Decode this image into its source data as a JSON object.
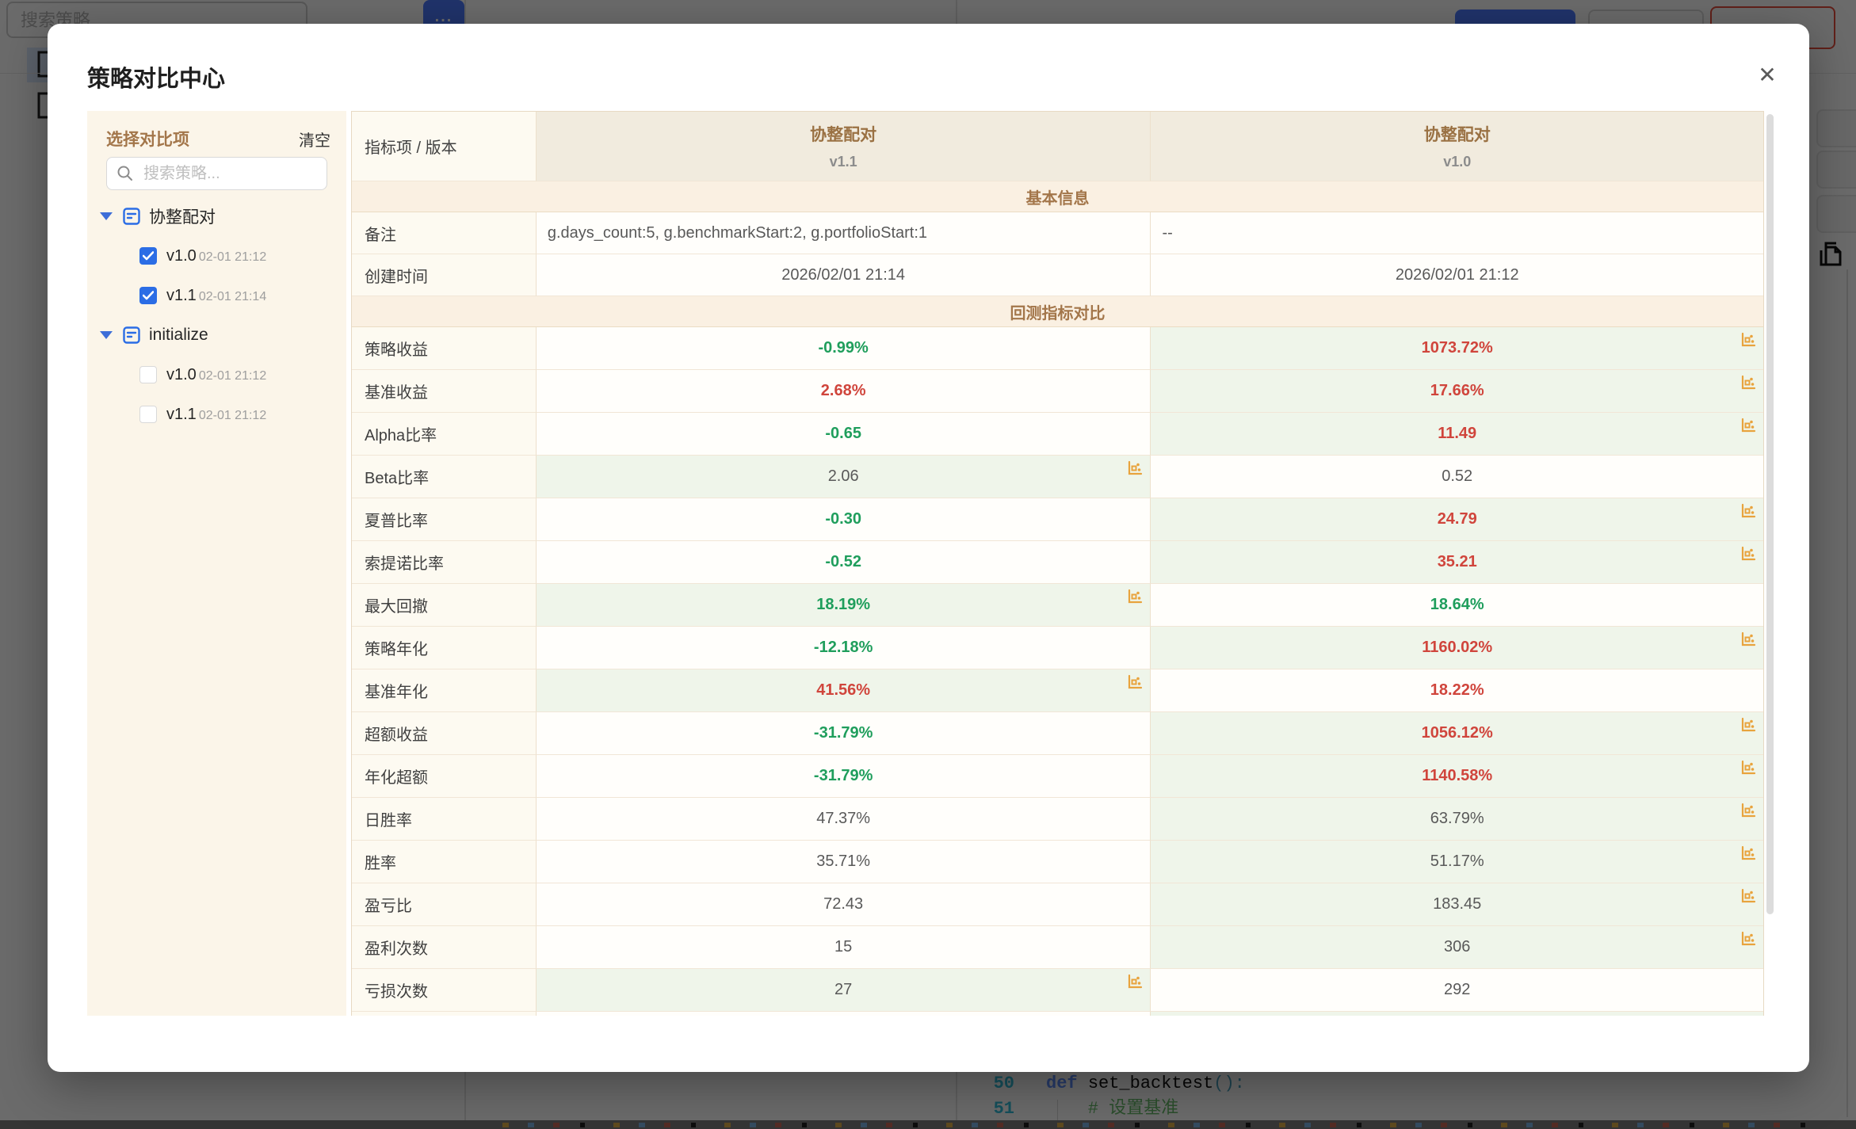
{
  "modal": {
    "title": "策略对比中心",
    "close_glyph": "✕"
  },
  "sidebar": {
    "title": "选择对比项",
    "clear_label": "清空",
    "search_placeholder": "搜索策略...",
    "tree": [
      {
        "label": "协整配对",
        "children": [
          {
            "version": "v1.0",
            "time": "02-01 21:12",
            "checked": true
          },
          {
            "version": "v1.1",
            "time": "02-01 21:14",
            "checked": true
          }
        ]
      },
      {
        "label": "initialize",
        "children": [
          {
            "version": "v1.0",
            "time": "02-01 21:12",
            "checked": false
          },
          {
            "version": "v1.1",
            "time": "02-01 21:12",
            "checked": false
          }
        ]
      }
    ]
  },
  "table": {
    "corner_label": "指标项 / 版本",
    "columns": [
      {
        "name": "协整配对",
        "version": "v1.1"
      },
      {
        "name": "协整配对",
        "version": "v1.0"
      }
    ],
    "sections": [
      {
        "title": "基本信息",
        "kind": "info",
        "rows": [
          {
            "label": "备注",
            "v1": "g.days_count:5, g.benchmarkStart:2, g.portfolioStart:1",
            "v1c": "vn",
            "v2": "--",
            "v2c": "vn",
            "winner": "",
            "align": "left"
          },
          {
            "label": "创建时间",
            "v1": "2026/02/01 21:14",
            "v1c": "vn",
            "v2": "2026/02/01 21:12",
            "v2c": "vn",
            "winner": "",
            "align": "center"
          }
        ]
      },
      {
        "title": "回测指标对比",
        "kind": "metric",
        "rows": [
          {
            "label": "策略收益",
            "v1": "-0.99%",
            "v1c": "vd",
            "v2": "1073.72%",
            "v2c": "vu",
            "winner": "v2"
          },
          {
            "label": "基准收益",
            "v1": "2.68%",
            "v1c": "vu",
            "v2": "17.66%",
            "v2c": "vu",
            "winner": "v2"
          },
          {
            "label": "Alpha比率",
            "v1": "-0.65",
            "v1c": "vd",
            "v2": "11.49",
            "v2c": "vu",
            "winner": "v2"
          },
          {
            "label": "Beta比率",
            "v1": "2.06",
            "v1c": "vn",
            "v2": "0.52",
            "v2c": "vn",
            "winner": "v1"
          },
          {
            "label": "夏普比率",
            "v1": "-0.30",
            "v1c": "vd",
            "v2": "24.79",
            "v2c": "vu",
            "winner": "v2"
          },
          {
            "label": "索提诺比率",
            "v1": "-0.52",
            "v1c": "vd",
            "v2": "35.21",
            "v2c": "vu",
            "winner": "v2"
          },
          {
            "label": "最大回撤",
            "v1": "18.19%",
            "v1c": "vd",
            "v2": "18.64%",
            "v2c": "vd",
            "winner": "v1"
          },
          {
            "label": "策略年化",
            "v1": "-12.18%",
            "v1c": "vd",
            "v2": "1160.02%",
            "v2c": "vu",
            "winner": "v2"
          },
          {
            "label": "基准年化",
            "v1": "41.56%",
            "v1c": "vu",
            "v2": "18.22%",
            "v2c": "vu",
            "winner": "v1"
          },
          {
            "label": "超额收益",
            "v1": "-31.79%",
            "v1c": "vd",
            "v2": "1056.12%",
            "v2c": "vu",
            "winner": "v2"
          },
          {
            "label": "年化超额",
            "v1": "-31.79%",
            "v1c": "vd",
            "v2": "1140.58%",
            "v2c": "vu",
            "winner": "v2"
          },
          {
            "label": "日胜率",
            "v1": "47.37%",
            "v1c": "vn",
            "v2": "63.79%",
            "v2c": "vn",
            "winner": "v2"
          },
          {
            "label": "胜率",
            "v1": "35.71%",
            "v1c": "vn",
            "v2": "51.17%",
            "v2c": "vn",
            "winner": "v2"
          },
          {
            "label": "盈亏比",
            "v1": "72.43",
            "v1c": "vn",
            "v2": "183.45",
            "v2c": "vn",
            "winner": "v2"
          },
          {
            "label": "盈利次数",
            "v1": "15",
            "v1c": "vn",
            "v2": "306",
            "v2c": "vn",
            "winner": "v2"
          },
          {
            "label": "亏损次数",
            "v1": "27",
            "v1c": "vn",
            "v2": "292",
            "v2c": "vn",
            "winner": "v1"
          },
          {
            "label": "",
            "v1": "",
            "v1c": "vn",
            "v2": "",
            "v2c": "vn",
            "winner": "v2"
          }
        ]
      }
    ]
  },
  "background": {
    "search_placeholder": "搜索策略",
    "more_label": "...",
    "editor": {
      "lines": [
        {
          "no": "50",
          "parts": [
            [
              "def ",
              "kw"
            ],
            [
              "set_backtest",
              "id"
            ],
            [
              "():",
              "pt"
            ]
          ]
        },
        {
          "no": "51",
          "parts": [
            [
              "    # 设置基准",
              "cm"
            ]
          ]
        }
      ]
    }
  },
  "colors": {
    "accent_blue": "#2B6DE5",
    "gain_red": "#D0453C",
    "loss_green": "#1F9E5C",
    "winner_bg": "#EFF5EA",
    "section_bg": "#FAF0E2",
    "section_text": "#A3764A",
    "header_bg": "#F1EBDE",
    "label_bg": "#FDFAF1",
    "sidebar_bg": "#FBF5E9",
    "chart_icon": "#E8A33D"
  }
}
